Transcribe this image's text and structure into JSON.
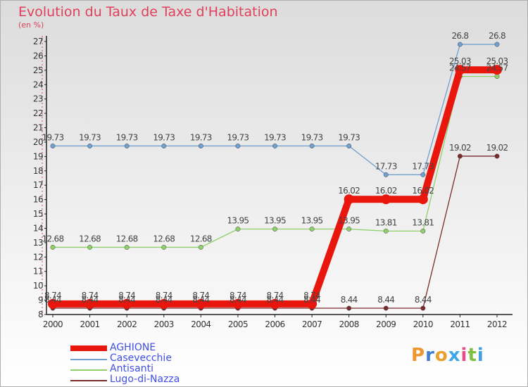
{
  "header": {
    "title": "Evolution du Taux de Taxe d'Habitation",
    "unit": "(en %)"
  },
  "logo": {
    "text": "Proxiti",
    "letters": [
      "P",
      "r",
      "o",
      "x",
      "i",
      "t",
      "i"
    ],
    "colors": [
      "#f0962e",
      "#3f7fd0",
      "#e8a030",
      "#3fa7e6",
      "#e84a8a",
      "#7fbf3f",
      "#3f9fe0"
    ]
  },
  "chart_data": {
    "type": "line",
    "title": "Evolution du Taux de Taxe d'Habitation",
    "ylabel": "(en %)",
    "xlabel": "",
    "x": [
      "2000",
      "2001",
      "2002",
      "2003",
      "2004",
      "2005",
      "2006",
      "2007",
      "2008",
      "2009",
      "2010",
      "2011",
      "2012"
    ],
    "ylim": [
      8,
      27
    ],
    "yticks": [
      "8",
      "9",
      "10",
      "11",
      "12",
      "13",
      "14",
      "15",
      "16",
      "17",
      "18",
      "19",
      "20",
      "21",
      "22",
      "23",
      "24",
      "25",
      "26",
      "27"
    ],
    "grid": false,
    "legend_position": "bottom-left",
    "series": [
      {
        "name": "Casevecchie",
        "color": "#6fa0d0",
        "values": [
          19.73,
          19.73,
          19.73,
          19.73,
          19.73,
          19.73,
          19.73,
          19.73,
          19.73,
          17.73,
          17.73,
          26.8,
          26.8
        ],
        "labels": [
          "19.73",
          "19.73",
          "19.73",
          "19.73",
          "19.73",
          "19.73",
          "19.73",
          "19.73",
          "19.73",
          "17.73",
          "17.73",
          "26.8",
          "26.8"
        ]
      },
      {
        "name": "Antisanti",
        "color": "#8fd06a",
        "values": [
          12.68,
          12.68,
          12.68,
          12.68,
          12.68,
          13.95,
          13.95,
          13.95,
          13.95,
          13.81,
          13.81,
          24.57,
          24.57
        ],
        "labels": [
          "12.68",
          "12.68",
          "12.68",
          "12.68",
          "12.68",
          "13.95",
          "13.95",
          "13.95",
          "13.95",
          "13.81",
          "13.81",
          "24.57",
          "24.57"
        ]
      },
      {
        "name": "Lugo-di-Nazza",
        "color": "#7a2a2a",
        "values": [
          8.44,
          8.44,
          8.44,
          8.44,
          8.44,
          8.44,
          8.44,
          8.44,
          8.44,
          8.44,
          8.44,
          19.02,
          19.02
        ],
        "labels": [
          "8.44",
          "8.44",
          "8.44",
          "8.44",
          "8.44",
          "8.44",
          "8.44",
          "8.44",
          "8.44",
          "8.44",
          "8.44",
          "19.02",
          "19.02"
        ]
      },
      {
        "name": "AGHIONE",
        "color": "#e8160c",
        "values": [
          8.74,
          8.74,
          8.74,
          8.74,
          8.74,
          8.74,
          8.74,
          8.74,
          16.02,
          16.02,
          16.02,
          25.03,
          25.03
        ],
        "labels": [
          "8.74",
          "8.74",
          "8.74",
          "8.74",
          "8.74",
          "8.74",
          "8.74",
          "8.74",
          "16.02",
          "16.02",
          "16.02",
          "25.03",
          "25.03"
        ]
      }
    ],
    "legend": [
      "AGHIONE",
      "Casevecchie",
      "Antisanti",
      "Lugo-di-Nazza"
    ]
  }
}
